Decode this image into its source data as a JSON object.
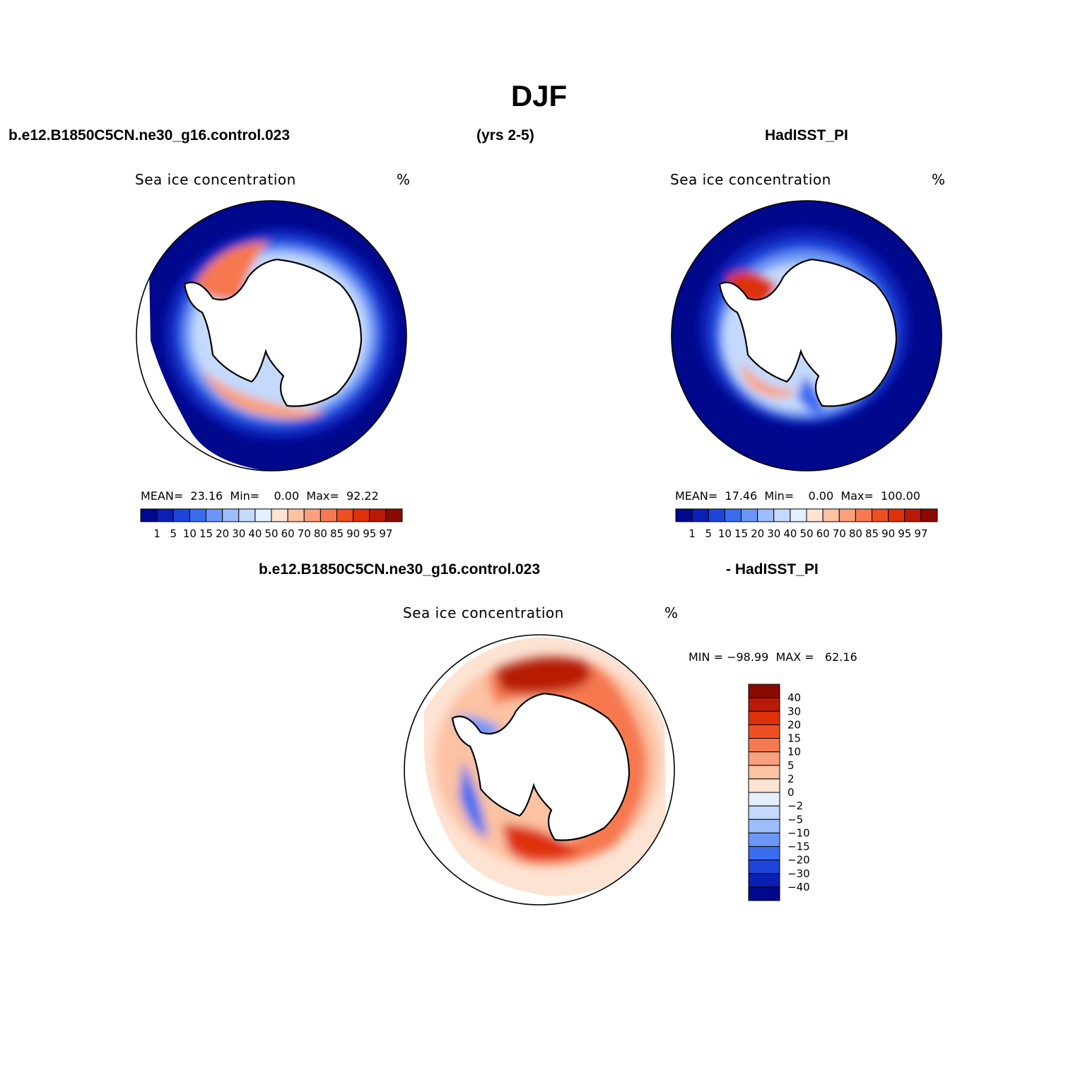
{
  "title": "DJF",
  "header": {
    "left": "b.e12.B1850C5CN.ne30_g16.control.023",
    "center": "(yrs 2-5)",
    "right": "HadISST_PI"
  },
  "diff_header": {
    "left": "b.e12.B1850C5CN.ne30_g16.control.023",
    "right": "- HadISST_PI"
  },
  "panels": [
    {
      "id": "model",
      "title": "Sea ice concentration",
      "units": "%",
      "stats": {
        "mean_label": "MEAN=",
        "mean": "23.16",
        "min_label": "Min=",
        "min": "0.00",
        "max_label": "Max=",
        "max": "92.22"
      }
    },
    {
      "id": "obs",
      "title": "Sea ice concentration",
      "units": "%",
      "stats": {
        "mean_label": "MEAN=",
        "mean": "17.46",
        "min_label": "Min=",
        "min": "0.00",
        "max_label": "Max=",
        "max": "100.00"
      }
    },
    {
      "id": "diff",
      "title": "Sea ice concentration",
      "units": "%",
      "stats_text": "MIN = −98.99  MAX =   62.16"
    }
  ],
  "colorbar_abs": {
    "labels": [
      "1",
      "5",
      "10",
      "15",
      "20",
      "30",
      "40",
      "50",
      "60",
      "70",
      "80",
      "85",
      "90",
      "95",
      "97"
    ],
    "colors": [
      "#00088c",
      "#0a1fb4",
      "#1d45d9",
      "#3a6cf0",
      "#6b96f7",
      "#9dbdfa",
      "#c4d9fc",
      "#e3eefe",
      "#fde3d3",
      "#fcc2a3",
      "#faa07c",
      "#f67850",
      "#ee4f22",
      "#de3109",
      "#b81a05",
      "#8a0a04"
    ]
  },
  "colorbar_diff": {
    "labels": [
      "40",
      "30",
      "20",
      "15",
      "10",
      "5",
      "2",
      "0",
      "−2",
      "−5",
      "−10",
      "−15",
      "−20",
      "−30",
      "−40"
    ],
    "colors": [
      "#8a0a04",
      "#b81a05",
      "#de3109",
      "#ee4f22",
      "#f67850",
      "#faa07c",
      "#fcc2a3",
      "#fde3d3",
      "#e3eefe",
      "#c4d9fc",
      "#9dbdfa",
      "#6b96f7",
      "#3a6cf0",
      "#1d45d9",
      "#0a1fb4",
      "#00088c"
    ]
  }
}
